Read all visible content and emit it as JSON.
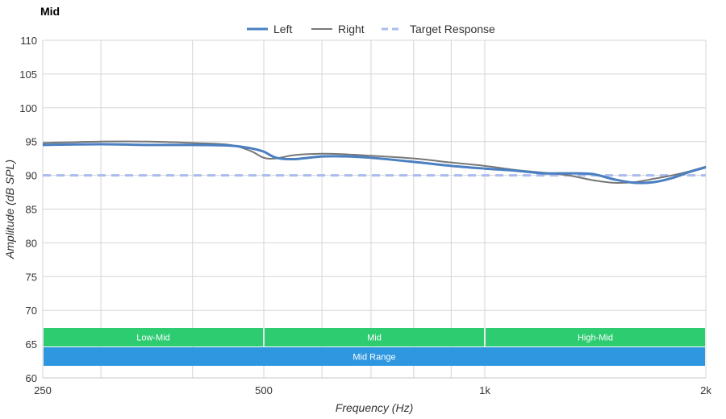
{
  "chart_data": {
    "type": "line",
    "title": "Mid",
    "xlabel": "Frequency (Hz)",
    "ylabel": "Amplitude (dB SPL)",
    "x_scale": "log",
    "xlim": [
      250,
      2000
    ],
    "ylim": [
      60,
      110
    ],
    "x_ticks": [
      {
        "value": 250,
        "label": "250"
      },
      {
        "value": 500,
        "label": "500"
      },
      {
        "value": 1000,
        "label": "1k"
      },
      {
        "value": 2000,
        "label": "2k"
      }
    ],
    "y_ticks": [
      60,
      65,
      70,
      75,
      80,
      85,
      90,
      95,
      100,
      105,
      110
    ],
    "grid": true,
    "legend_position": "top-center",
    "series": [
      {
        "name": "Left",
        "color": "#4a7fc1",
        "style": "solid-thick",
        "points": [
          [
            250,
            94.5
          ],
          [
            300,
            94.6
          ],
          [
            350,
            94.5
          ],
          [
            400,
            94.5
          ],
          [
            450,
            94.4
          ],
          [
            480,
            94.0
          ],
          [
            500,
            93.5
          ],
          [
            520,
            92.6
          ],
          [
            550,
            92.4
          ],
          [
            600,
            92.8
          ],
          [
            650,
            92.8
          ],
          [
            700,
            92.6
          ],
          [
            800,
            92.0
          ],
          [
            900,
            91.4
          ],
          [
            1000,
            91.0
          ],
          [
            1100,
            90.7
          ],
          [
            1200,
            90.3
          ],
          [
            1300,
            90.3
          ],
          [
            1400,
            90.2
          ],
          [
            1500,
            89.4
          ],
          [
            1600,
            88.9
          ],
          [
            1700,
            89.0
          ],
          [
            1800,
            89.6
          ],
          [
            1900,
            90.5
          ],
          [
            2000,
            91.2
          ]
        ]
      },
      {
        "name": "Right",
        "color": "#777777",
        "style": "solid-thin",
        "points": [
          [
            250,
            94.8
          ],
          [
            300,
            95.0
          ],
          [
            350,
            95.0
          ],
          [
            400,
            94.8
          ],
          [
            450,
            94.5
          ],
          [
            480,
            93.6
          ],
          [
            500,
            92.6
          ],
          [
            520,
            92.5
          ],
          [
            550,
            93.0
          ],
          [
            600,
            93.2
          ],
          [
            650,
            93.1
          ],
          [
            700,
            92.9
          ],
          [
            800,
            92.5
          ],
          [
            900,
            91.9
          ],
          [
            1000,
            91.4
          ],
          [
            1100,
            90.8
          ],
          [
            1200,
            90.4
          ],
          [
            1300,
            90.0
          ],
          [
            1400,
            89.3
          ],
          [
            1500,
            88.9
          ],
          [
            1600,
            89.0
          ],
          [
            1700,
            89.5
          ],
          [
            1800,
            90.0
          ],
          [
            1900,
            90.6
          ],
          [
            2000,
            91.3
          ]
        ]
      },
      {
        "name": "Target Response",
        "color": "#aabbee",
        "style": "dashed",
        "points": [
          [
            250,
            90
          ],
          [
            2000,
            90
          ]
        ]
      }
    ],
    "bands": [
      {
        "label": "Low-Mid",
        "from": 250,
        "to": 500,
        "color": "#2ecc71",
        "row": 1
      },
      {
        "label": "Mid",
        "from": 500,
        "to": 1000,
        "color": "#2ecc71",
        "row": 1
      },
      {
        "label": "High-Mid",
        "from": 1000,
        "to": 2000,
        "color": "#2ecc71",
        "row": 1
      },
      {
        "label": "Mid Range",
        "from": 250,
        "to": 2000,
        "color": "#2e97e0",
        "row": 2
      }
    ]
  }
}
